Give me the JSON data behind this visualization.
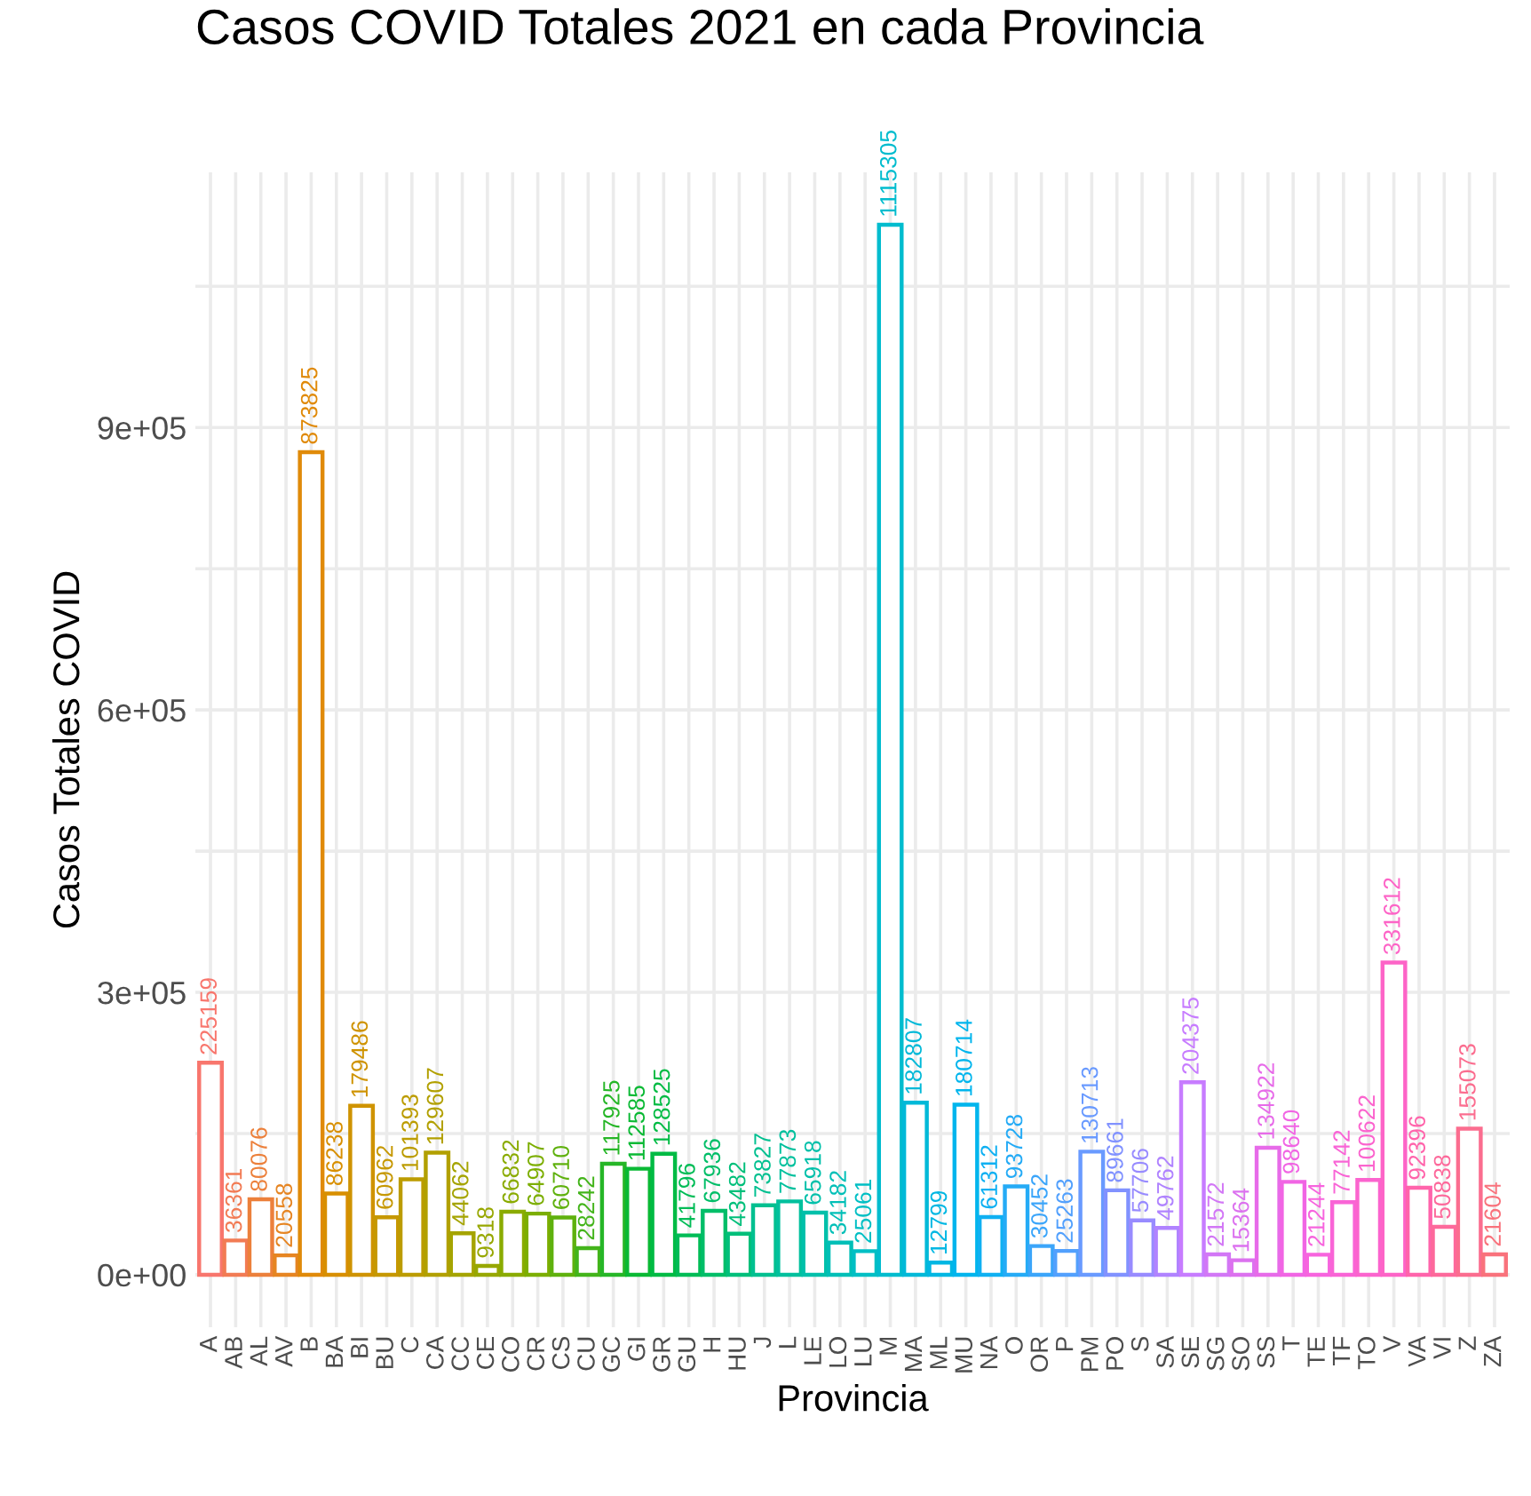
{
  "chart_data": {
    "type": "bar",
    "title": "Casos COVID Totales 2021 en cada Provincia",
    "xlabel": "Provincia",
    "ylabel": "Casos Totales COVID",
    "categories": [
      "A",
      "AB",
      "AL",
      "AV",
      "B",
      "BA",
      "BI",
      "BU",
      "C",
      "CA",
      "CC",
      "CE",
      "CO",
      "CR",
      "CS",
      "CU",
      "GC",
      "GI",
      "GR",
      "GU",
      "H",
      "HU",
      "J",
      "L",
      "LE",
      "LO",
      "LU",
      "M",
      "MA",
      "ML",
      "MU",
      "NA",
      "O",
      "OR",
      "P",
      "PM",
      "PO",
      "S",
      "SA",
      "SE",
      "SG",
      "SO",
      "SS",
      "T",
      "TE",
      "TF",
      "TO",
      "V",
      "VA",
      "VI",
      "Z",
      "ZA"
    ],
    "values": [
      225159,
      36361,
      80076,
      20558,
      873825,
      86238,
      179486,
      60962,
      101393,
      129607,
      44062,
      9318,
      66832,
      64907,
      60710,
      28242,
      117925,
      112585,
      128525,
      41796,
      67936,
      43482,
      73827,
      77873,
      65918,
      34182,
      25061,
      1115305,
      182807,
      12799,
      180714,
      61312,
      93728,
      30452,
      25263,
      130713,
      89661,
      57706,
      49762,
      204375,
      21572,
      15364,
      134922,
      98640,
      21244,
      77142,
      100622,
      331612,
      92396,
      50838,
      155073,
      21604
    ],
    "colors": [
      "#F8766D",
      "#F27B54",
      "#EC803B",
      "#E68522",
      "#E08A09",
      "#D88F00",
      "#CF9300",
      "#C69800",
      "#BC9C00",
      "#B2A000",
      "#A5A400",
      "#97A700",
      "#8AAB00",
      "#7CAE00",
      "#5FB10D",
      "#43B41A",
      "#26B627",
      "#0AB934",
      "#00BB44",
      "#00BC56",
      "#00BE68",
      "#00BF7A",
      "#00C090",
      "#00C09D",
      "#00C0AA",
      "#00BFB7",
      "#00BFC4",
      "#00BCCE",
      "#00B9D8",
      "#00B7E3",
      "#00B5ED",
      "#0FB0F2",
      "#25ABF6",
      "#3BA5FA",
      "#52A0FD",
      "#699AFF",
      "#8192FF",
      "#988BFF",
      "#B083FF",
      "#C77CFF",
      "#D277F6",
      "#DC71EF",
      "#E76BE9",
      "#F165E4",
      "#F764DE",
      "#F964D6",
      "#FB64CE",
      "#FD64C7",
      "#FF64AB",
      "#FD699B",
      "#FB6D8F",
      "#F9727C"
    ],
    "ylim": [
      -55765,
      1171070
    ],
    "yticks": [
      {
        "value": 0,
        "label": "0e+00"
      },
      {
        "value": 150000,
        "label": null
      },
      {
        "value": 300000,
        "label": "3e+05"
      },
      {
        "value": 450000,
        "label": null
      },
      {
        "value": 600000,
        "label": "6e+05"
      },
      {
        "value": 750000,
        "label": null
      },
      {
        "value": 900000,
        "label": "9e+05"
      },
      {
        "value": 1050000,
        "label": null
      }
    ],
    "grid": true,
    "data_labels": true,
    "legend": false
  }
}
